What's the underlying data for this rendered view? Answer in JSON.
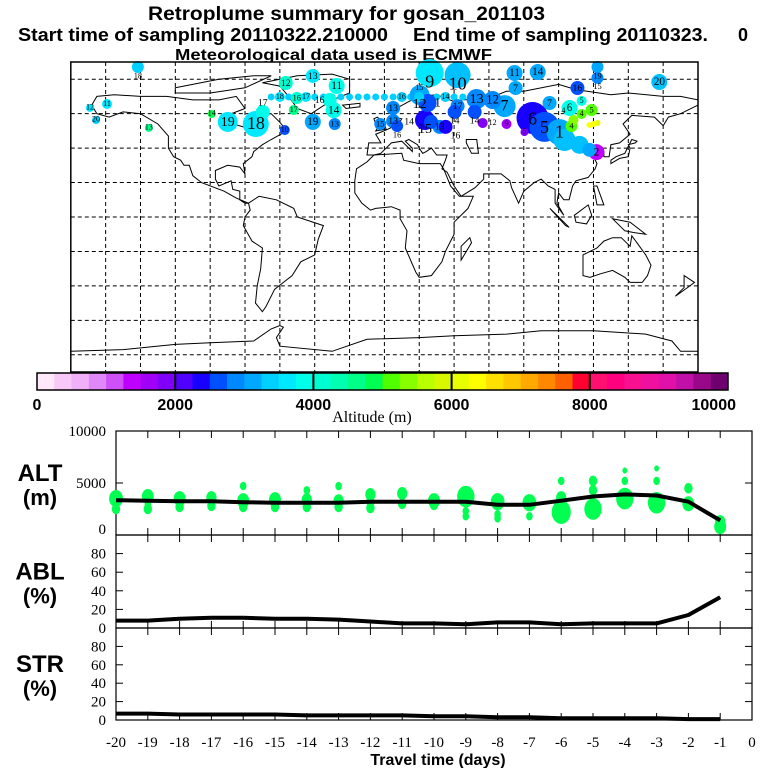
{
  "header": {
    "title": "Retroplume summary for gosan_201103",
    "start_label": "Start time of sampling 20110322.210000",
    "end_label": "End time of sampling 20110323.",
    "end_suffix": "0",
    "met_label": "Meteorological data used is ECMWF"
  },
  "colorbar": {
    "title": "Altitude (m)",
    "range": [
      0,
      10000
    ],
    "tick_labels": [
      "0",
      "2000",
      "4000",
      "6000",
      "8000",
      "10000"
    ],
    "colors": [
      "#ffe8fa",
      "#f8c8f8",
      "#f0b0f8",
      "#e088f8",
      "#d050f8",
      "#c000ff",
      "#a000f8",
      "#8000f8",
      "#5000ff",
      "#1800ff",
      "#0050ff",
      "#0088ff",
      "#00a8ff",
      "#00d0ff",
      "#00e8ff",
      "#00ffe8",
      "#00ffd0",
      "#00ffb0",
      "#00ff88",
      "#00ff50",
      "#50ff00",
      "#88ff00",
      "#b8ff00",
      "#d8f800",
      "#e8ff00",
      "#ffff00",
      "#ffe000",
      "#ffc800",
      "#ffa800",
      "#ff8800",
      "#ff6000",
      "#ff0030",
      "#ff1070",
      "#ff0080",
      "#f81090",
      "#f010a0",
      "#e010a8",
      "#c010a8",
      "#980888",
      "#700070"
    ]
  },
  "chart_data": [
    {
      "type": "scatter",
      "title": "Retroplume map",
      "xlabel": "Longitude",
      "ylabel": "Latitude",
      "xlim": [
        -180,
        180
      ],
      "ylim": [
        -90,
        90
      ],
      "grid": true,
      "points": [
        {
          "label": "18",
          "lon": -141.5,
          "lat": 87.1,
          "weight": 4,
          "color": "#00d0ff"
        },
        {
          "label": "12",
          "lon": -56.6,
          "lat": 77.8,
          "weight": 5,
          "color": "#00ffd0"
        },
        {
          "label": "13",
          "lon": -41.1,
          "lat": 81.9,
          "weight": 5,
          "color": "#00e8ff"
        },
        {
          "label": "11",
          "lon": -27.4,
          "lat": 76.1,
          "weight": 6,
          "color": "#00ffe8"
        },
        {
          "label": "18",
          "lon": -60,
          "lat": 69.7,
          "weight": 3,
          "color": "#00e8ff"
        },
        {
          "label": "17",
          "lon": -45,
          "lat": 69.7,
          "weight": 3,
          "color": "#00e8ff"
        },
        {
          "label": "16",
          "lon": 10,
          "lat": 69.7,
          "weight": 3,
          "color": "#00d0ff"
        },
        {
          "label": "15",
          "lon": 20,
          "lat": 69.7,
          "weight": 3,
          "color": "#00d0ff"
        },
        {
          "label": "14",
          "lon": 35,
          "lat": 69.7,
          "weight": 3,
          "color": "#00d0ff"
        },
        {
          "label": "9",
          "lon": 26,
          "lat": 83.6,
          "weight": 12,
          "color": "#00e8ff"
        },
        {
          "label": "10",
          "lon": 42,
          "lat": 82.4,
          "weight": 11,
          "color": "#00c0ff"
        },
        {
          "label": "11",
          "lon": 74.7,
          "lat": 83.6,
          "weight": 6,
          "color": "#00a8ff"
        },
        {
          "label": "14",
          "lon": 88,
          "lat": 84.2,
          "weight": 6,
          "color": "#00a8ff"
        },
        {
          "label": "19",
          "lon": 122.3,
          "lat": 87.1,
          "weight": 4,
          "color": "#00a8ff"
        },
        {
          "label": "15",
          "lon": 122.3,
          "lat": 80.8,
          "weight": 4,
          "color": "#0088ff"
        },
        {
          "label": "20",
          "lon": 157.8,
          "lat": 78.4,
          "weight": 6,
          "color": "#00c0ff"
        },
        {
          "label": "7",
          "lon": 75.3,
          "lat": 74.9,
          "weight": 5,
          "color": "#00a8ff"
        },
        {
          "label": "12",
          "lon": 62.1,
          "lat": 67.9,
          "weight": 7,
          "color": "#0088ff"
        },
        {
          "label": "12",
          "lon": 20.2,
          "lat": 70.8,
          "weight": 8,
          "color": "#00a8ff"
        },
        {
          "label": "16",
          "lon": 110.8,
          "lat": 74.9,
          "weight": 5,
          "color": "#0050ff"
        },
        {
          "label": "7",
          "lon": 94.8,
          "lat": 66.2,
          "weight": 5,
          "color": "#00a8ff"
        },
        {
          "label": "6",
          "lon": 106.3,
          "lat": 63.3,
          "weight": 6,
          "color": "#00ffe8"
        },
        {
          "label": "5",
          "lon": 113.2,
          "lat": 67.4,
          "weight": 3,
          "color": "#00ffe8"
        },
        {
          "label": "4",
          "lon": 113.2,
          "lat": 59.8,
          "weight": 3,
          "color": "#50ff00"
        },
        {
          "label": "5",
          "lon": 118.9,
          "lat": 62.1,
          "weight": 4,
          "color": "#50ff00"
        },
        {
          "label": "4",
          "lon": 108.5,
          "lat": 56.3,
          "weight": 3,
          "color": "#88ff00"
        },
        {
          "label": "1",
          "lon": 24.8,
          "lat": 66.2,
          "weight": 7,
          "color": "#0050ff"
        },
        {
          "label": "17",
          "lon": 42,
          "lat": 64.4,
          "weight": 5,
          "color": "#0088ff"
        },
        {
          "label": "13",
          "lon": 52.9,
          "lat": 68.5,
          "weight": 8,
          "color": "#0088ff"
        },
        {
          "label": "7",
          "lon": 69,
          "lat": 64.4,
          "weight": 9,
          "color": "#00a8ff"
        },
        {
          "label": "",
          "lon": 103.4,
          "lat": 44.7,
          "weight": 9,
          "color": "#00c0ff"
        },
        {
          "label": "",
          "lon": 112,
          "lat": 41.9,
          "weight": 7,
          "color": "#00c0ff"
        },
        {
          "label": "",
          "lon": 117.7,
          "lat": 39,
          "weight": 5,
          "color": "#00a8ff"
        },
        {
          "label": "6",
          "lon": 85,
          "lat": 57.5,
          "weight": 14,
          "color": "#1800ff"
        },
        {
          "label": "5",
          "lon": 91.9,
          "lat": 52.3,
          "weight": 13,
          "color": "#0050ff"
        },
        {
          "label": "1",
          "lon": 100.5,
          "lat": 49.3,
          "weight": 11,
          "color": "#00a8ff"
        },
        {
          "label": "4",
          "lon": 107.4,
          "lat": 52.8,
          "weight": 4,
          "color": "#50ff00"
        },
        {
          "label": "",
          "lon": 117.7,
          "lat": 53.4,
          "weight": 1,
          "color": "#ffff00"
        },
        {
          "label": "",
          "lon": 120,
          "lat": 54,
          "weight": 1,
          "color": "#ffff00"
        },
        {
          "label": "",
          "lon": 122.3,
          "lat": 54.6,
          "weight": 1,
          "color": "#e8ff00"
        },
        {
          "label": "2",
          "lon": 121.7,
          "lat": 37.7,
          "weight": 6,
          "color": "#c000ff"
        },
        {
          "label": "14",
          "lon": 40.3,
          "lat": 61,
          "weight": 5,
          "color": "#0050ff"
        },
        {
          "label": "14",
          "lon": 51.8,
          "lat": 61,
          "weight": 5,
          "color": "#0050ff"
        },
        {
          "label": "12",
          "lon": 56.4,
          "lat": 54.6,
          "weight": 3,
          "color": "#8000f8"
        },
        {
          "label": "13",
          "lon": 31.7,
          "lat": 52.3,
          "weight": 5,
          "color": "#0088ff"
        },
        {
          "label": "16",
          "lon": 35.1,
          "lat": 52.3,
          "weight": 5,
          "color": "#1800ff"
        },
        {
          "label": "9",
          "lon": 70.1,
          "lat": 54,
          "weight": 3,
          "color": "#a000f8"
        },
        {
          "label": "5",
          "lon": 80.4,
          "lat": 49.3,
          "weight": 2,
          "color": "#8000f8"
        },
        {
          "label": "13",
          "lon": 5,
          "lat": 63.3,
          "weight": 5,
          "color": "#0088ff"
        },
        {
          "label": "13",
          "lon": 5,
          "lat": 55.7,
          "weight": 5,
          "color": "#0088ff"
        },
        {
          "label": "15",
          "lon": -2.4,
          "lat": 54,
          "weight": 4,
          "color": "#0088ff"
        },
        {
          "label": "16",
          "lon": 7.3,
          "lat": 52.8,
          "weight": 4,
          "color": "#0050ff"
        },
        {
          "label": "15",
          "lon": 23.3,
          "lat": 56.3,
          "weight": 8,
          "color": "#1800ff"
        },
        {
          "label": "14",
          "lon": 26.8,
          "lat": 55.2,
          "weight": 5,
          "color": "#0050ff"
        },
        {
          "label": "13",
          "lon": -28.5,
          "lat": 54,
          "weight": 4,
          "color": "#0088ff"
        },
        {
          "label": "19",
          "lon": -41.1,
          "lat": 55.2,
          "weight": 6,
          "color": "#00a8ff"
        },
        {
          "label": "19",
          "lon": -89.9,
          "lat": 55.2,
          "weight": 8,
          "color": "#00e8ff"
        },
        {
          "label": "18",
          "lon": -73.8,
          "lat": 54,
          "weight": 11,
          "color": "#00e8ff"
        },
        {
          "label": "17",
          "lon": -69.8,
          "lat": 61,
          "weight": 5,
          "color": "#00ffe8"
        },
        {
          "label": "16",
          "lon": -50.3,
          "lat": 69.1,
          "weight": 4,
          "color": "#00ffd0"
        },
        {
          "label": "17",
          "lon": -52,
          "lat": 62.1,
          "weight": 3,
          "color": "#00ff88"
        },
        {
          "label": "14",
          "lon": -29.1,
          "lat": 62.1,
          "weight": 6,
          "color": "#00ffe8"
        },
        {
          "label": "16",
          "lon": -31.4,
          "lat": 67.9,
          "weight": 5,
          "color": "#00ffe8"
        },
        {
          "label": "12",
          "lon": -169,
          "lat": 63.3,
          "weight": 2,
          "color": "#00e8ff"
        },
        {
          "label": "11",
          "lon": -159.2,
          "lat": 65.6,
          "weight": 3,
          "color": "#00e8ff"
        },
        {
          "label": "20",
          "lon": -165.5,
          "lat": 56.3,
          "weight": 2,
          "color": "#00d0ff"
        },
        {
          "label": "13",
          "lon": -135.2,
          "lat": 51.7,
          "weight": 2,
          "color": "#00ff88"
        },
        {
          "label": "14",
          "lon": -99.1,
          "lat": 59.8,
          "weight": 2,
          "color": "#00ff50"
        },
        {
          "label": "10",
          "lon": -57.2,
          "lat": 50.5,
          "weight": 3,
          "color": "#0050ff"
        }
      ]
    },
    {
      "type": "line",
      "panel_label": "ALT",
      "panel_unit": "(m)",
      "x": [
        -20,
        -19,
        -18,
        -17,
        -16,
        -15,
        -14,
        -13,
        -12,
        -11,
        -10,
        -9,
        -8,
        -7,
        -6,
        -5,
        -4,
        -3,
        -2,
        -1
      ],
      "values": [
        3350,
        3300,
        3250,
        3250,
        3150,
        3100,
        3100,
        3100,
        3200,
        3200,
        3200,
        3200,
        2900,
        2900,
        3300,
        3700,
        3900,
        3800,
        3200,
        1400
      ],
      "ylim": [
        0,
        10000
      ],
      "ytick_labels": [
        "10000",
        "5000",
        "0"
      ],
      "ytick_values": [
        10000,
        5000,
        0
      ],
      "cluster_color": "#00ff50",
      "clusters": [
        [
          -20,
          3500,
          6
        ],
        [
          -20,
          2500,
          3
        ],
        [
          -19,
          3700,
          5
        ],
        [
          -19,
          2500,
          3
        ],
        [
          -19,
          3000,
          2
        ],
        [
          -18,
          3500,
          5
        ],
        [
          -18,
          2700,
          3
        ],
        [
          -17,
          3600,
          4
        ],
        [
          -17,
          2800,
          3
        ],
        [
          -16,
          3300,
          5
        ],
        [
          -16,
          2700,
          3
        ],
        [
          -16,
          4700,
          2
        ],
        [
          -15,
          3400,
          5
        ],
        [
          -15,
          2700,
          3
        ],
        [
          -14,
          3400,
          4
        ],
        [
          -14,
          2700,
          3
        ],
        [
          -14,
          4300,
          2
        ],
        [
          -13,
          3300,
          4
        ],
        [
          -13,
          2700,
          3
        ],
        [
          -13,
          4700,
          2
        ],
        [
          -12,
          3900,
          4
        ],
        [
          -12,
          3200,
          3
        ],
        [
          -12,
          2600,
          3
        ],
        [
          -11,
          4000,
          4
        ],
        [
          -11,
          3000,
          3
        ],
        [
          -10,
          3300,
          5
        ],
        [
          -10,
          2900,
          3
        ],
        [
          -9,
          3700,
          8
        ],
        [
          -9,
          2300,
          2
        ],
        [
          -9,
          1800,
          2
        ],
        [
          -8,
          3200,
          6
        ],
        [
          -8,
          2000,
          2
        ],
        [
          -8,
          1600,
          2
        ],
        [
          -7,
          3100,
          6
        ],
        [
          -7,
          1800,
          2
        ],
        [
          -6,
          2200,
          9
        ],
        [
          -6,
          3600,
          4
        ],
        [
          -6,
          5200,
          2
        ],
        [
          -5,
          2500,
          8
        ],
        [
          -5,
          4300,
          3
        ],
        [
          -5,
          5200,
          3
        ],
        [
          -4,
          3500,
          8
        ],
        [
          -4,
          5200,
          2
        ],
        [
          -4,
          6200,
          1
        ],
        [
          -3,
          3100,
          8
        ],
        [
          -3,
          5200,
          2
        ],
        [
          -3,
          6400,
          1
        ],
        [
          -2,
          3000,
          5
        ],
        [
          -2,
          4500,
          3
        ],
        [
          -1,
          800,
          5
        ],
        [
          -1,
          1300,
          4
        ]
      ]
    },
    {
      "type": "line",
      "panel_label": "ABL",
      "panel_unit": "(%)",
      "x": [
        -20,
        -19,
        -18,
        -17,
        -16,
        -15,
        -14,
        -13,
        -12,
        -11,
        -10,
        -9,
        -8,
        -7,
        -6,
        -5,
        -4,
        -3,
        -2,
        -1
      ],
      "values": [
        8,
        8,
        10,
        11,
        11,
        10,
        10,
        9,
        7,
        5,
        5,
        4,
        6,
        6,
        4,
        5,
        5,
        5,
        14,
        33
      ],
      "ylim": [
        0,
        100
      ],
      "ytick_labels": [
        "80",
        "60",
        "40",
        "20",
        "0"
      ],
      "ytick_values": [
        80,
        60,
        40,
        20,
        0
      ]
    },
    {
      "type": "line",
      "panel_label": "STR",
      "panel_unit": "(%)",
      "x": [
        -20,
        -19,
        -18,
        -17,
        -16,
        -15,
        -14,
        -13,
        -12,
        -11,
        -10,
        -9,
        -8,
        -7,
        -6,
        -5,
        -4,
        -3,
        -2,
        -1
      ],
      "values": [
        7,
        7,
        6,
        6,
        6,
        6,
        5,
        5,
        5,
        5,
        4,
        4,
        3,
        3,
        2,
        2,
        2,
        2,
        1,
        1
      ],
      "ylim": [
        0,
        100
      ],
      "ytick_labels": [
        "80",
        "60",
        "40",
        "20",
        "0"
      ],
      "ytick_values": [
        80,
        60,
        40,
        20,
        0
      ],
      "xlabel": "Travel time (days)",
      "xtick_labels": [
        "-20",
        "-19",
        "-18",
        "-17",
        "-16",
        "-15",
        "-14",
        "-13",
        "-12",
        "-11",
        "-10",
        "-9",
        "-8",
        "-7",
        "-6",
        "-5",
        "-4",
        "-3",
        "-2",
        "-1",
        "0"
      ],
      "xlim": [
        -20,
        0
      ]
    }
  ]
}
